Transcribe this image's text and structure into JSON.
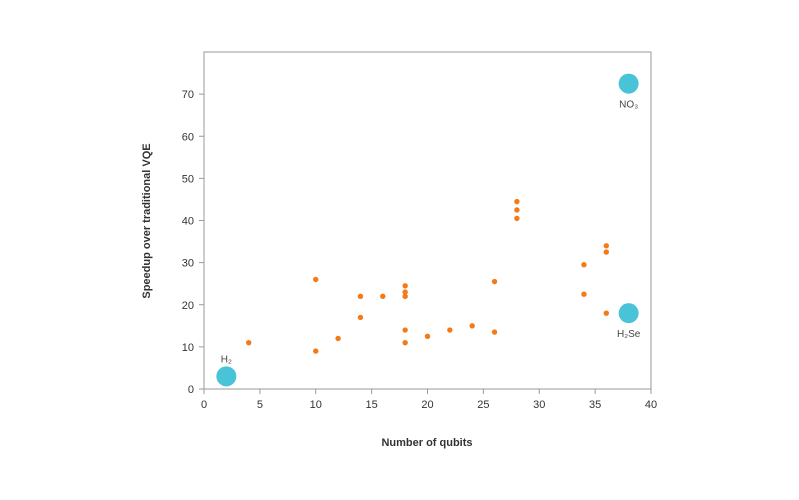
{
  "chart_data": {
    "type": "scatter",
    "title": "",
    "xlabel": "Number of qubits",
    "ylabel": "Speedup over traditional VQE",
    "xlim": [
      0,
      40
    ],
    "ylim": [
      0,
      80
    ],
    "xticks": [
      0,
      5,
      10,
      15,
      20,
      25,
      30,
      35,
      40
    ],
    "yticks": [
      0,
      10,
      20,
      30,
      40,
      50,
      60,
      70
    ],
    "grid": false,
    "colors": {
      "small_points": "#F47A16",
      "highlight_points": "#49C3D8",
      "axis": "#999999"
    },
    "series": [
      {
        "marker": "small",
        "points": [
          {
            "x": 4,
            "y": 11
          },
          {
            "x": 10,
            "y": 26
          },
          {
            "x": 10,
            "y": 9
          },
          {
            "x": 12,
            "y": 12
          },
          {
            "x": 14,
            "y": 22
          },
          {
            "x": 14,
            "y": 17
          },
          {
            "x": 16,
            "y": 22
          },
          {
            "x": 18,
            "y": 24.5
          },
          {
            "x": 18,
            "y": 23
          },
          {
            "x": 18,
            "y": 22
          },
          {
            "x": 18,
            "y": 14
          },
          {
            "x": 18,
            "y": 11
          },
          {
            "x": 20,
            "y": 12.5
          },
          {
            "x": 22,
            "y": 14
          },
          {
            "x": 24,
            "y": 15
          },
          {
            "x": 26,
            "y": 25.5
          },
          {
            "x": 26,
            "y": 13.5
          },
          {
            "x": 28,
            "y": 44.5
          },
          {
            "x": 28,
            "y": 42.5
          },
          {
            "x": 28,
            "y": 40.5
          },
          {
            "x": 34,
            "y": 29.5
          },
          {
            "x": 34,
            "y": 22.5
          },
          {
            "x": 36,
            "y": 34
          },
          {
            "x": 36,
            "y": 32.5
          },
          {
            "x": 36,
            "y": 18
          }
        ]
      },
      {
        "marker": "large",
        "points": [
          {
            "x": 2,
            "y": 3,
            "label": "H₂",
            "label_pos": "above"
          },
          {
            "x": 38,
            "y": 72.5,
            "label": "NO₃",
            "label_pos": "below"
          },
          {
            "x": 38,
            "y": 18,
            "label": "H₂Se",
            "label_pos": "below"
          }
        ]
      }
    ]
  }
}
